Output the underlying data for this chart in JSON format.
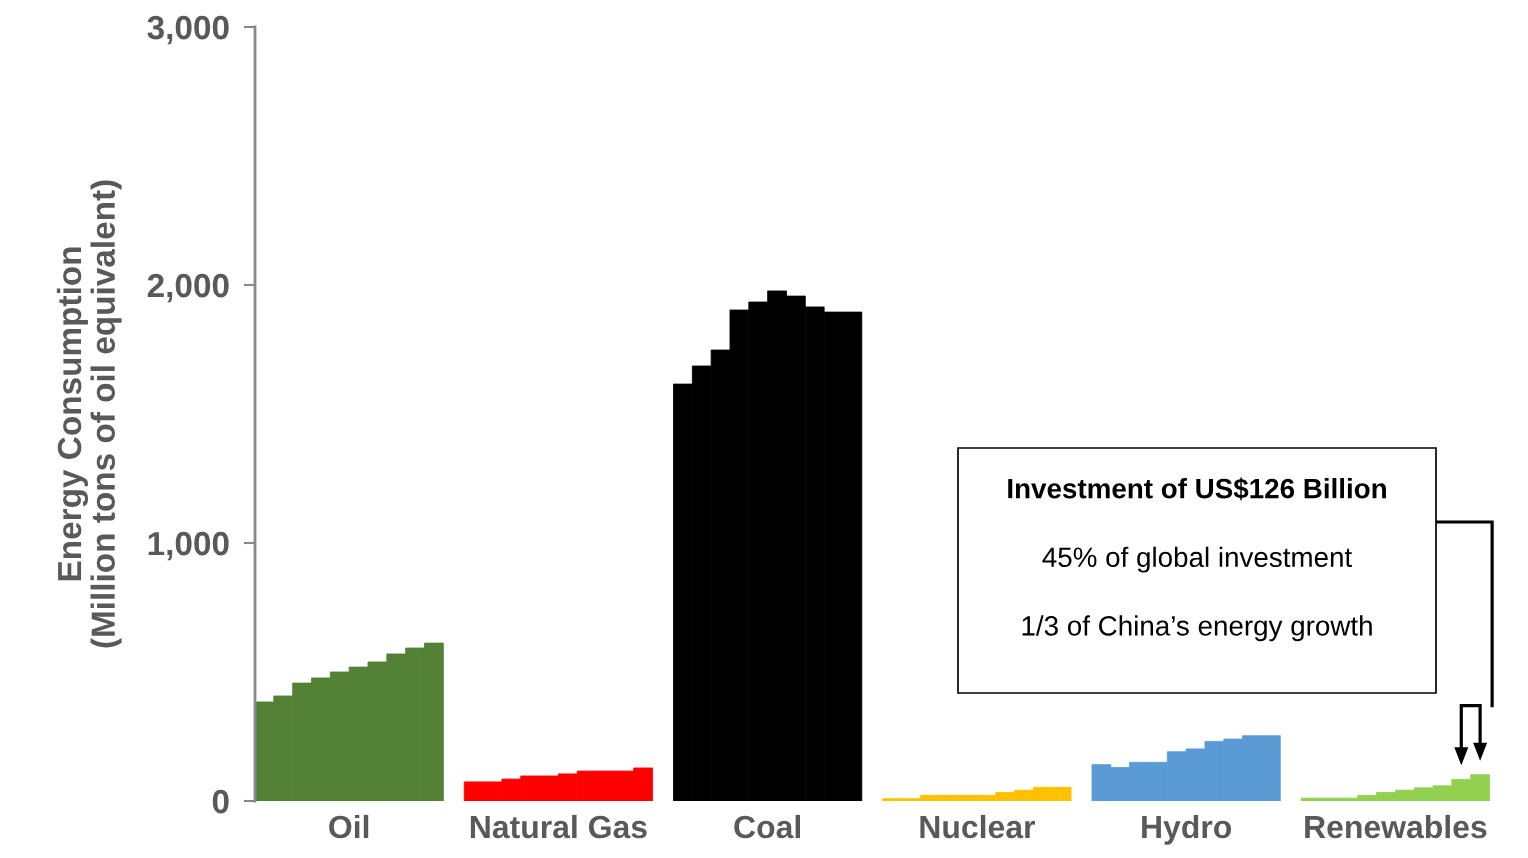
{
  "chart_data": {
    "type": "bar",
    "categories": [
      "Oil",
      "Natural Gas",
      "Coal",
      "Nuclear",
      "Hydro",
      "Renewables"
    ],
    "ylabel": "Energy Consumption\n(Million tons of oil equivalent)",
    "ylim": [
      0,
      3000
    ],
    "yticks": [
      0,
      {
        "value": 1000,
        "label": "1,000"
      },
      {
        "value": 2000,
        "label": "2,000"
      },
      {
        "value": 3000,
        "label": "3,000"
      }
    ],
    "grid": false,
    "series": [
      {
        "colors": [
          "#538135",
          "#ff0000",
          "#000000",
          "#ffc000",
          "#5b9bd5",
          "#92d050"
        ],
        "values": [
          384,
          74,
          1616,
          9,
          141,
          11
        ]
      },
      {
        "colors": [
          "#538135",
          "#ff0000",
          "#000000",
          "#ffc000",
          "#5b9bd5",
          "#92d050"
        ],
        "values": [
          407,
          74,
          1686,
          9,
          130,
          11
        ]
      },
      {
        "colors": [
          "#538135",
          "#ff0000",
          "#000000",
          "#ffc000",
          "#5b9bd5",
          "#92d050"
        ],
        "values": [
          457,
          85,
          1748,
          22,
          150,
          11
        ]
      },
      {
        "colors": [
          "#538135",
          "#ff0000",
          "#000000",
          "#ffc000",
          "#5b9bd5",
          "#92d050"
        ],
        "values": [
          477,
          97,
          1903,
          22,
          150,
          22
        ]
      },
      {
        "colors": [
          "#538135",
          "#ff0000",
          "#000000",
          "#ffc000",
          "#5b9bd5",
          "#92d050"
        ],
        "values": [
          500,
          97,
          1934,
          22,
          191,
          33
        ]
      },
      {
        "colors": [
          "#538135",
          "#ff0000",
          "#000000",
          "#ffc000",
          "#5b9bd5",
          "#92d050"
        ],
        "values": [
          519,
          105,
          1977,
          22,
          202,
          42
        ]
      },
      {
        "colors": [
          "#538135",
          "#ff0000",
          "#000000",
          "#ffc000",
          "#5b9bd5",
          "#92d050"
        ],
        "values": [
          539,
          116,
          1957,
          33,
          231,
          51
        ]
      },
      {
        "colors": [
          "#538135",
          "#ff0000",
          "#000000",
          "#ffc000",
          "#5b9bd5",
          "#92d050"
        ],
        "values": [
          570,
          116,
          1915,
          42,
          240,
          59
        ]
      },
      {
        "colors": [
          "#538135",
          "#ff0000",
          "#000000",
          "#ffc000",
          "#5b9bd5",
          "#92d050"
        ],
        "values": [
          593,
          116,
          1895,
          53,
          253,
          84
        ]
      },
      {
        "colors": [
          "#538135",
          "#ff0000",
          "#000000",
          "#ffc000",
          "#5b9bd5",
          "#92d050"
        ],
        "values": [
          612,
          128,
          1895,
          53,
          253,
          102
        ]
      }
    ],
    "annotations": [
      "Investment of US$126 Billion",
      "45% of global investment",
      "1/3 of China’s energy growth"
    ]
  }
}
